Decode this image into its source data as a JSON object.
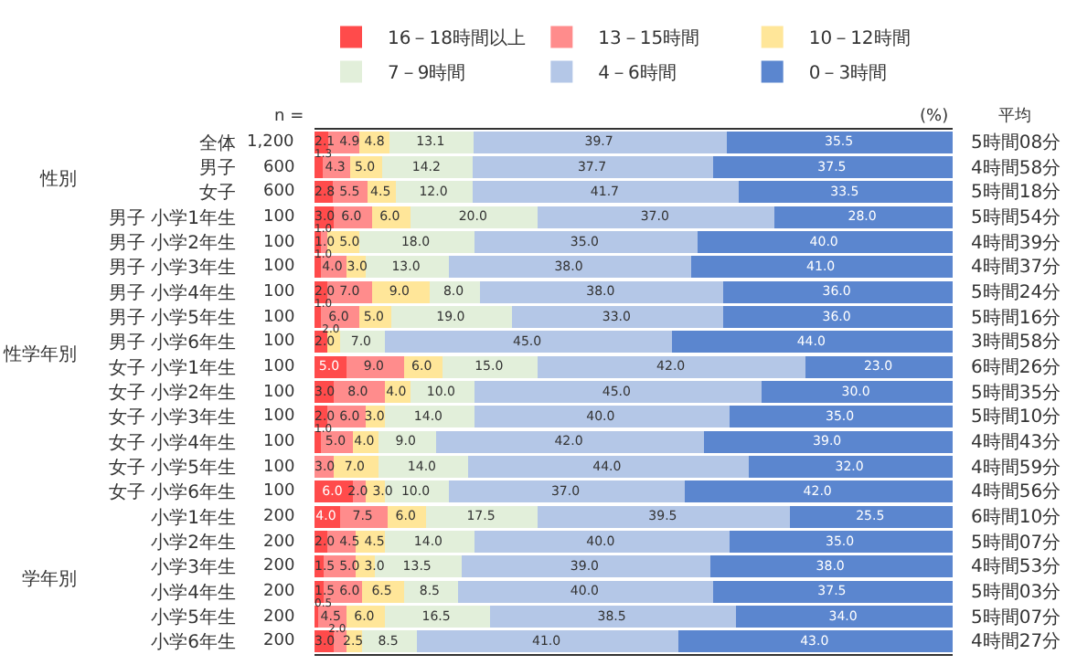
{
  "chart_data": {
    "type": "bar",
    "orientation": "horizontal",
    "stacked": true,
    "legend": "top",
    "tick_labels": "y",
    "xlim": [
      0,
      100
    ],
    "categories": [
      "全体",
      "男子",
      "女子",
      "男子 小学1年生",
      "男子 小学2年生",
      "男子 小学3年生",
      "男子 小学4年生",
      "男子 小学5年生",
      "男子 小学6年生",
      "女子 小学1年生",
      "女子 小学2年生",
      "女子 小学3年生",
      "女子 小学4年生",
      "女子 小学5年生",
      "女子 小学6年生",
      "小学1年生",
      "小学2年生",
      "小学3年生",
      "小学4年生",
      "小学5年生",
      "小学6年生"
    ],
    "series": [
      {
        "name": "16－18時間以上",
        "color": "#ff4b4b",
        "values": [
          2.1,
          1.3,
          2.8,
          3.0,
          1.0,
          1.0,
          2.0,
          1.0,
          2.0,
          5.0,
          3.0,
          2.0,
          1.0,
          0,
          6.0,
          4.0,
          2.0,
          1.5,
          1.5,
          0.5,
          3.0
        ],
        "value_labels": [
          "2.1",
          "1.3",
          "2.8",
          "3.0",
          "1.0",
          "1.0",
          "2.0",
          "1.0",
          "2.0",
          "5.0",
          "3.0",
          "2.0",
          "1.0",
          null,
          "6.0",
          "4.0",
          "2.0",
          "1.5",
          "1.5",
          "0.5",
          "3.0"
        ]
      },
      {
        "name": "13－15時間",
        "color": "#ff8c8c",
        "values": [
          4.9,
          4.3,
          5.5,
          6.0,
          1.0,
          4.0,
          7.0,
          6.0,
          0,
          9.0,
          8.0,
          6.0,
          5.0,
          3.0,
          2.0,
          7.5,
          4.5,
          5.0,
          6.0,
          4.5,
          2.0
        ],
        "value_labels": [
          "4.9",
          "4.3",
          "5.5",
          "6.0",
          "1.0",
          "4.0",
          "7.0",
          "6.0",
          null,
          "9.0",
          "8.0",
          "6.0",
          "5.0",
          "3.0",
          "2.0",
          "7.5",
          "4.5",
          "5.0",
          "6.0",
          "4.5",
          "2.0"
        ]
      },
      {
        "name": "10－12時間",
        "color": "#ffe699",
        "values": [
          4.8,
          5.0,
          4.5,
          6.0,
          5.0,
          3.0,
          9.0,
          5.0,
          2.0,
          6.0,
          4.0,
          3.0,
          4.0,
          7.0,
          3.0,
          6.0,
          4.5,
          3.0,
          6.5,
          6.0,
          2.5
        ],
        "value_labels": [
          "4.8",
          "5.0",
          "4.5",
          "6.0",
          "5.0",
          "3.0",
          "9.0",
          "5.0",
          "2.0",
          "6.0",
          "4.0",
          "3.0",
          "4.0",
          "7.0",
          "3.0",
          "6.0",
          "4.5",
          "3.0",
          "6.5",
          "6.0",
          "2.5"
        ]
      },
      {
        "name": "7－9時間",
        "color": "#e2efda",
        "values": [
          13.1,
          14.2,
          12.0,
          20.0,
          18.0,
          13.0,
          8.0,
          19.0,
          7.0,
          15.0,
          10.0,
          14.0,
          9.0,
          14.0,
          10.0,
          17.5,
          14.0,
          13.5,
          8.5,
          16.5,
          8.5
        ],
        "value_labels": [
          "13.1",
          "14.2",
          "12.0",
          "20.0",
          "18.0",
          "13.0",
          "8.0",
          "19.0",
          "7.0",
          "15.0",
          "10.0",
          "14.0",
          "9.0",
          "14.0",
          "10.0",
          "17.5",
          "14.0",
          "13.5",
          "8.5",
          "16.5",
          "8.5"
        ]
      },
      {
        "name": "4－6時間",
        "color": "#b4c7e7",
        "values": [
          39.7,
          37.7,
          41.7,
          37.0,
          35.0,
          38.0,
          38.0,
          33.0,
          45.0,
          42.0,
          45.0,
          40.0,
          42.0,
          44.0,
          37.0,
          39.5,
          40.0,
          39.0,
          40.0,
          38.5,
          41.0
        ],
        "value_labels": [
          "39.7",
          "37.7",
          "41.7",
          "37.0",
          "35.0",
          "38.0",
          "38.0",
          "33.0",
          "45.0",
          "42.0",
          "45.0",
          "40.0",
          "42.0",
          "44.0",
          "37.0",
          "39.5",
          "40.0",
          "39.0",
          "40.0",
          "38.5",
          "41.0"
        ]
      },
      {
        "name": "0－3時間",
        "color": "#5b86cf",
        "values": [
          35.5,
          37.5,
          33.5,
          28.0,
          40.0,
          41.0,
          36.0,
          36.0,
          44.0,
          23.0,
          30.0,
          35.0,
          39.0,
          32.0,
          42.0,
          25.5,
          35.0,
          38.0,
          37.5,
          34.0,
          43.0
        ],
        "value_labels": [
          "35.5",
          "37.5",
          "33.5",
          "28.0",
          "40.0",
          "41.0",
          "36.0",
          "36.0",
          "44.0",
          "23.0",
          "30.0",
          "35.0",
          "39.0",
          "32.0",
          "42.0",
          "25.5",
          "35.0",
          "38.0",
          "37.5",
          "34.0",
          "43.0"
        ]
      }
    ],
    "annotations": [
      "(%)",
      "n =",
      "平均",
      "性別",
      "性学年別",
      "学年別",
      "1,200",
      "600",
      "600",
      "100",
      "100",
      "100",
      "100",
      "100",
      "100",
      "100",
      "100",
      "100",
      "100",
      "100",
      "100",
      "200",
      "200",
      "200",
      "200",
      "200",
      "200",
      "5時間08分",
      "4時間58分",
      "5時間18分",
      "5時間54分",
      "4時間39分",
      "4時間37分",
      "5時間24分",
      "5時間16分",
      "3時間58分",
      "6時間26分",
      "5時間35分",
      "5時間10分",
      "4時間43分",
      "4時間59分",
      "4時間56分",
      "6時間10分",
      "5時間07分",
      "4時間53分",
      "5時間03分",
      "5時間07分",
      "4時間27分"
    ]
  }
}
